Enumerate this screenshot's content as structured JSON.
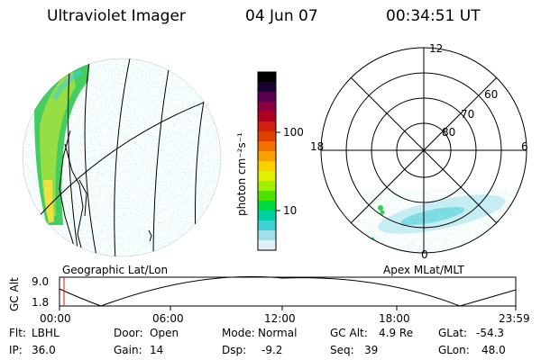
{
  "header": {
    "instrument": "Ultraviolet Imager",
    "date": "04 Jun 07",
    "time": "00:34:51 UT"
  },
  "colorbar": {
    "label": "photon cm⁻²s⁻¹",
    "ticks": [
      "100",
      "10"
    ],
    "colors": [
      "#000000",
      "#1a0033",
      "#5a0050",
      "#8a0040",
      "#b00020",
      "#d02010",
      "#e04000",
      "#f07000",
      "#f8a000",
      "#f8d000",
      "#e0f000",
      "#a0f000",
      "#50e000",
      "#00d840",
      "#00d0a0",
      "#40d0d8",
      "#a0e0e8",
      "#e0f0f4"
    ]
  },
  "left_map": {
    "label": "Geographic Lat/Lon"
  },
  "polar_plot": {
    "label": "Apex  MLat/MLT",
    "mlt_labels": {
      "top": "12",
      "left": "18",
      "right": "6",
      "bottom": "0"
    },
    "lat_labels": [
      "60",
      "70",
      "80"
    ]
  },
  "altitude_plot": {
    "ylabel": "GC Alt",
    "yticks": [
      "9.0",
      "1.8"
    ],
    "xticks": [
      "00:00",
      "06:00",
      "12:00",
      "18:00",
      "23:59"
    ],
    "marker_color": "#ff0000"
  },
  "status": {
    "row1": [
      {
        "label": "Flt:",
        "value": "LBHL"
      },
      {
        "label": "Door:",
        "value": "Open"
      },
      {
        "label": "Mode:",
        "value": "Normal"
      },
      {
        "label": "GC Alt:",
        "value": "4.9 Re"
      },
      {
        "label": "GLat:",
        "value": "-54.3"
      }
    ],
    "row2": [
      {
        "label": "IP:",
        "value": "36.0"
      },
      {
        "label": "Gain:",
        "value": "14"
      },
      {
        "label": "Dsp:",
        "value": "-9.2"
      },
      {
        "label": "Seq:",
        "value": "39"
      },
      {
        "label": "GLon:",
        "value": "48.0"
      }
    ]
  }
}
